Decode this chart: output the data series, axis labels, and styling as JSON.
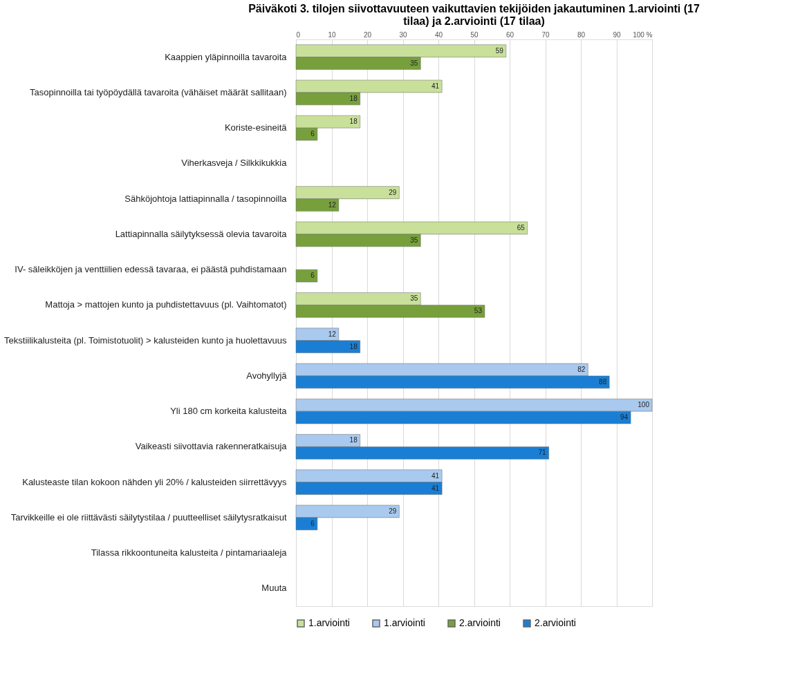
{
  "chart_data": {
    "type": "bar",
    "orientation": "horizontal",
    "title": "Päiväkoti 3. tilojen siivottavuuteen vaikuttavien tekijöiden jakautuminen 1.arviointi (17 tilaa) ja 2.arviointi (17 tilaa)",
    "categories": [
      "Kaappien yläpinnoilla tavaroita",
      "Tasopinnoilla tai työpöydällä tavaroita (vähäiset määrät sallitaan)",
      "Koriste-esineitä",
      "Viherkasveja / Silkkikukkia",
      "Sähköjohtoja lattiapinnalla / tasopinnoilla",
      "Lattiapinnalla säilytyksessä olevia tavaroita",
      "IV- säleikköjen ja venttiilien edessä tavaraa, ei päästä puhdistamaan",
      "Mattoja > mattojen kunto ja puhdistettavuus (pl. Vaihtomatot)",
      "Tekstiilikalusteita (pl. Toimistotuolit) > kalusteiden kunto ja huolettavuus",
      "Avohyllyjä",
      "Yli 180 cm korkeita kalusteita",
      "Vaikeasti siivottavia rakenneratkaisuja",
      "Kalusteaste tilan kokoon nähden yli 20% / kalusteiden siirrettävyys",
      "Tarvikkeille ei ole riittävästi säilytystilaa / puutteelliset säilytysratkaisut",
      "Tilassa rikkoontuneita kalusteita / pintamariaaleja",
      "Muuta"
    ],
    "series": [
      {
        "name": "1.arviointi",
        "color": "#c8e09a",
        "values": [
          59,
          41,
          18,
          null,
          29,
          65,
          null,
          35,
          null,
          null,
          null,
          null,
          null,
          null,
          null,
          null
        ]
      },
      {
        "name": "1.arviointi",
        "color": "#a9c9ee",
        "values": [
          null,
          null,
          null,
          null,
          null,
          null,
          null,
          null,
          12,
          82,
          100,
          18,
          41,
          29,
          null,
          null
        ]
      },
      {
        "name": "2.arviointi",
        "color": "#77a03c",
        "values": [
          35,
          18,
          6,
          null,
          12,
          35,
          6,
          53,
          null,
          null,
          null,
          null,
          null,
          null,
          null,
          null
        ]
      },
      {
        "name": "2.arviointi",
        "color": "#1a7fd4",
        "values": [
          null,
          null,
          null,
          null,
          null,
          null,
          null,
          null,
          18,
          88,
          94,
          71,
          41,
          6,
          null,
          null
        ]
      }
    ],
    "xlim": [
      0,
      100
    ],
    "xticks": [
      0,
      10,
      20,
      30,
      40,
      50,
      60,
      70,
      80,
      {
        "value": 90,
        "label": "90"
      },
      {
        "value": 100,
        "label": "100 %"
      }
    ],
    "grid": "x",
    "legend": "bottom",
    "data_labels": true
  }
}
